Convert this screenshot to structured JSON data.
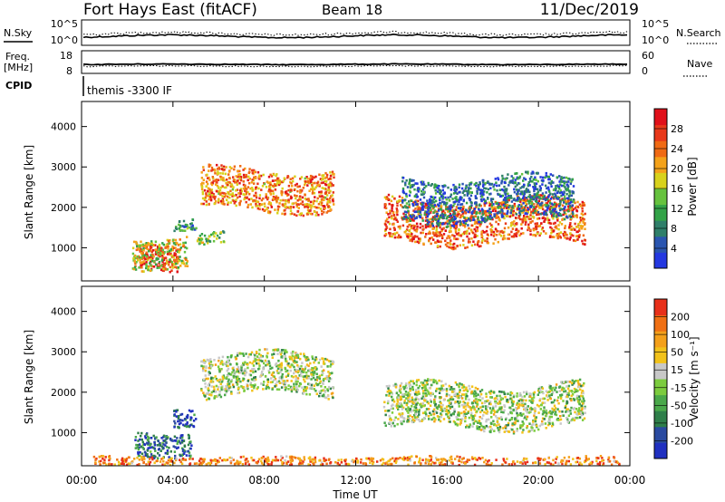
{
  "header": {
    "station": "Fort Hays East (fitACF)",
    "beam": "Beam 18",
    "date": "11/Dec/2019"
  },
  "aux_panels": {
    "nsky_label": "N.Sky",
    "nsearch_label": "N.Search",
    "noise_ticks_left": [
      "10^5",
      "10^0"
    ],
    "noise_ticks_right": [
      "10^5",
      "10^0"
    ],
    "freq_label_line1": "Freq.",
    "freq_label_line2": "[MHz]",
    "freq_ticks": [
      "18",
      "8"
    ],
    "nave_label": "Nave",
    "nave_ticks": [
      "60",
      "0"
    ],
    "cpid_label": "CPID",
    "cpid_text": "themis -3300 IF"
  },
  "chart_data": [
    {
      "type": "heatmap",
      "name": "power-panel",
      "ylabel": "Slant Range [km]",
      "yticks": [
        "1000",
        "2000",
        "3000",
        "4000"
      ],
      "ylim_km": [
        180,
        4620
      ],
      "xlim_hours": [
        0,
        24
      ],
      "colorbar": {
        "label": "Power [dB]",
        "ticks": [
          "4",
          "8",
          "12",
          "16",
          "20",
          "24",
          "28"
        ],
        "colors": [
          "#2438e0",
          "#2a55b0",
          "#2f7f6a",
          "#33a348",
          "#66c23e",
          "#d8d21c",
          "#f4a21a",
          "#f06a14",
          "#e8381a",
          "#e0101a"
        ]
      },
      "scatter_regions": [
        {
          "t0": 2.5,
          "t1": 4.2,
          "r0": 500,
          "r1": 1150,
          "level": 0.92
        },
        {
          "t0": 2.2,
          "t1": 4.6,
          "r0": 550,
          "r1": 1300,
          "level": 0.55
        },
        {
          "t0": 4.0,
          "t1": 5.0,
          "r0": 1450,
          "r1": 1750,
          "level": 0.3
        },
        {
          "t0": 5.0,
          "t1": 6.2,
          "r0": 1100,
          "r1": 1400,
          "level": 0.45
        },
        {
          "t0": 5.2,
          "t1": 11.0,
          "r0": 1950,
          "r1": 2950,
          "level": 0.72
        },
        {
          "t0": 13.2,
          "t1": 22.0,
          "r0": 1150,
          "r1": 2200,
          "level": 0.78
        },
        {
          "t0": 14.0,
          "t1": 21.5,
          "r0": 1700,
          "r1": 2750,
          "level": 0.2
        }
      ]
    },
    {
      "type": "heatmap",
      "name": "velocity-panel",
      "ylabel": "Slant Range [km]",
      "yticks": [
        "1000",
        "2000",
        "3000",
        "4000"
      ],
      "ylim_km": [
        180,
        4620
      ],
      "xlim_hours": [
        0,
        24
      ],
      "xticks": [
        "00:00",
        "04:00",
        "08:00",
        "12:00",
        "16:00",
        "20:00",
        "00:00"
      ],
      "xlabel": "Time UT",
      "colorbar": {
        "label": "Velocity [m s⁻¹]",
        "ticks": [
          "200",
          "100",
          "50",
          "15",
          "-15",
          "-50",
          "-100",
          "-200"
        ],
        "colors": [
          "#2030c0",
          "#2a4aa0",
          "#2f7f4a",
          "#4aa84a",
          "#7ccc3e",
          "#c8c8c8",
          "#f2c21a",
          "#f4a01a",
          "#f07014",
          "#e8301a"
        ]
      },
      "scatter_regions": [
        {
          "t0": 2.3,
          "t1": 4.8,
          "r0": 450,
          "r1": 1050,
          "level": 0.2
        },
        {
          "t0": 4.0,
          "t1": 5.0,
          "r0": 1200,
          "r1": 1650,
          "level": 0.1
        },
        {
          "t0": 5.2,
          "t1": 11.0,
          "r0": 1950,
          "r1": 2950,
          "level": 0.5
        },
        {
          "t0": 13.2,
          "t1": 22.0,
          "r0": 1150,
          "r1": 2200,
          "level": 0.5
        },
        {
          "t0": 0.5,
          "t1": 23.5,
          "r0": 200,
          "r1": 420,
          "level": 0.8
        }
      ]
    }
  ]
}
